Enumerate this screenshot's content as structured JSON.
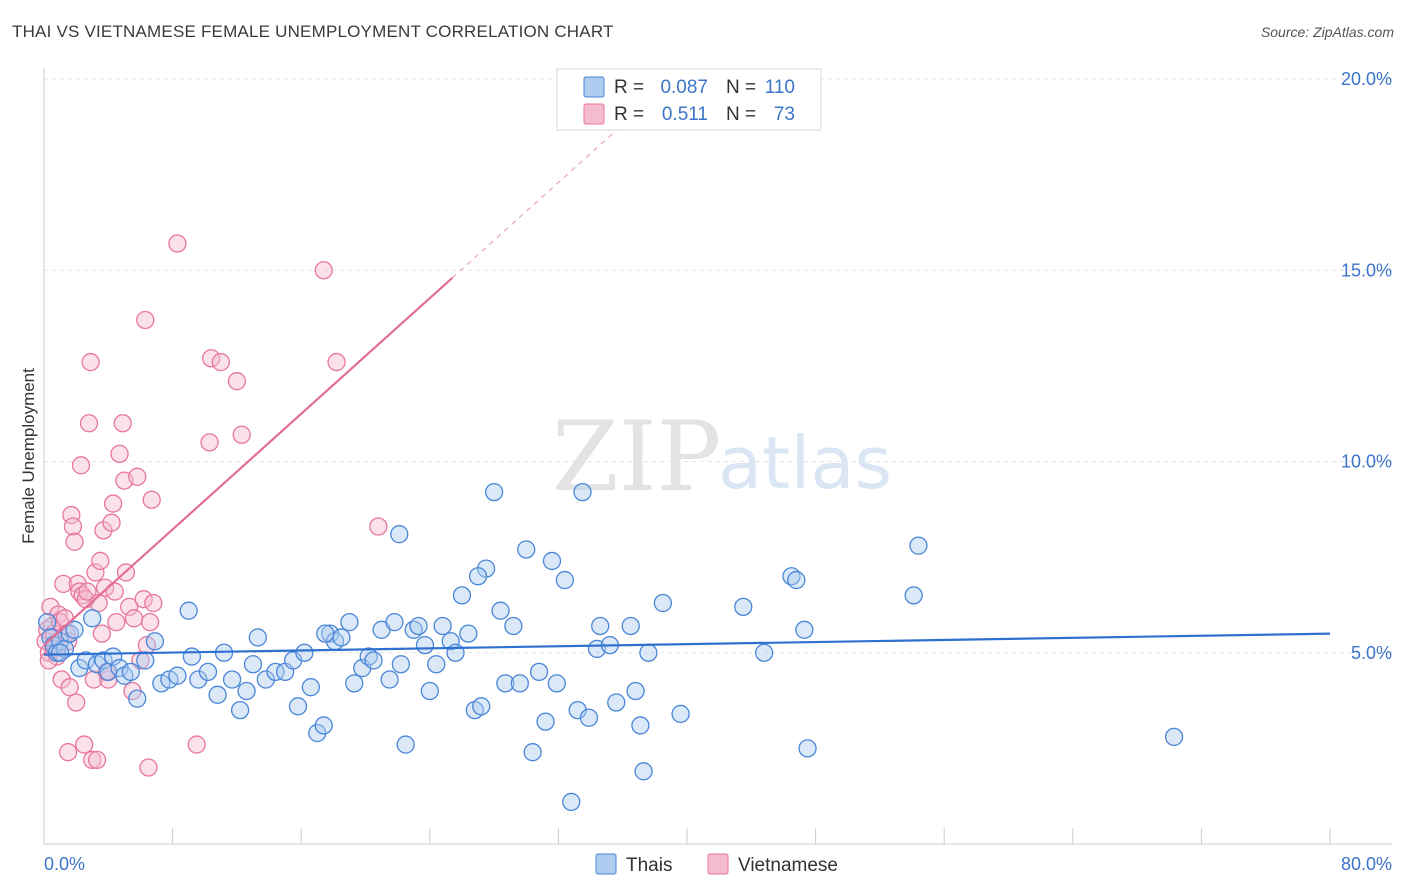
{
  "title": "THAI VS VIETNAMESE FEMALE UNEMPLOYMENT CORRELATION CHART",
  "source": "Source: ZipAtlas.com",
  "watermark": {
    "part1": "ZIP",
    "part2": "atlas"
  },
  "colors": {
    "thais": "#4a86d8",
    "vietnamese": "#e8769c",
    "thais_fill": "#aecbf0",
    "vietnamese_fill": "#f5bcd0",
    "axis_text": "#3c74c9"
  },
  "legend": {
    "r_label": "R =",
    "n_label": "N =",
    "thais": {
      "r": "0.087",
      "n": "110"
    },
    "vietnamese": {
      "r": "0.511",
      "n": "73"
    }
  },
  "chart_data": {
    "type": "scatter",
    "title": "THAI VS VIETNAMESE FEMALE UNEMPLOYMENT CORRELATION CHART",
    "xlabel": "",
    "ylabel": "Female Unemployment",
    "xlim": [
      0,
      80
    ],
    "ylim": [
      0,
      20
    ],
    "x_tick_labels": [
      "0.0%",
      "80.0%"
    ],
    "y_ticks": [
      5,
      10,
      15,
      20
    ],
    "y_tick_labels": [
      "5.0%",
      "10.0%",
      "15.0%",
      "20.0%"
    ],
    "grid": true,
    "legend_position": "top-center",
    "series": [
      {
        "name": "Thais",
        "trend": {
          "x": [
            0,
            80
          ],
          "y": [
            4.95,
            5.5
          ]
        },
        "points": [
          [
            0.2,
            5.8
          ],
          [
            0.4,
            5.4
          ],
          [
            0.6,
            5.2
          ],
          [
            0.8,
            5.0
          ],
          [
            1.0,
            5.3
          ],
          [
            1.3,
            5.1
          ],
          [
            1.6,
            5.5
          ],
          [
            1.9,
            5.6
          ],
          [
            2.2,
            4.6
          ],
          [
            2.6,
            4.8
          ],
          [
            3.0,
            5.9
          ],
          [
            3.3,
            4.7
          ],
          [
            3.7,
            4.8
          ],
          [
            4.0,
            4.5
          ],
          [
            4.3,
            4.9
          ],
          [
            4.7,
            4.6
          ],
          [
            5.0,
            4.4
          ],
          [
            5.4,
            4.5
          ],
          [
            5.8,
            3.8
          ],
          [
            6.3,
            4.8
          ],
          [
            6.9,
            5.3
          ],
          [
            7.3,
            4.2
          ],
          [
            7.8,
            4.3
          ],
          [
            8.3,
            4.4
          ],
          [
            9.0,
            6.1
          ],
          [
            9.2,
            4.9
          ],
          [
            9.6,
            4.3
          ],
          [
            10.2,
            4.5
          ],
          [
            10.8,
            3.9
          ],
          [
            11.2,
            5.0
          ],
          [
            11.7,
            4.3
          ],
          [
            12.2,
            3.5
          ],
          [
            12.6,
            4.0
          ],
          [
            13.0,
            4.7
          ],
          [
            13.3,
            5.4
          ],
          [
            13.8,
            4.3
          ],
          [
            14.4,
            4.5
          ],
          [
            15.0,
            4.5
          ],
          [
            15.5,
            4.8
          ],
          [
            15.8,
            3.6
          ],
          [
            16.2,
            5.0
          ],
          [
            16.6,
            4.1
          ],
          [
            17.0,
            2.9
          ],
          [
            17.4,
            3.1
          ],
          [
            17.8,
            5.5
          ],
          [
            18.1,
            5.3
          ],
          [
            18.5,
            5.4
          ],
          [
            19.0,
            5.8
          ],
          [
            19.3,
            4.2
          ],
          [
            19.8,
            4.6
          ],
          [
            20.2,
            4.9
          ],
          [
            20.5,
            4.8
          ],
          [
            21.0,
            5.6
          ],
          [
            21.5,
            4.3
          ],
          [
            21.8,
            5.8
          ],
          [
            22.2,
            4.7
          ],
          [
            22.5,
            2.6
          ],
          [
            23.0,
            5.6
          ],
          [
            23.3,
            5.7
          ],
          [
            23.7,
            5.2
          ],
          [
            24.0,
            4.0
          ],
          [
            24.4,
            4.7
          ],
          [
            24.8,
            5.7
          ],
          [
            25.3,
            5.3
          ],
          [
            25.6,
            5.0
          ],
          [
            26.0,
            6.5
          ],
          [
            26.4,
            5.5
          ],
          [
            26.8,
            3.5
          ],
          [
            27.2,
            3.6
          ],
          [
            27.5,
            7.2
          ],
          [
            27.0,
            7.0
          ],
          [
            28.0,
            9.2
          ],
          [
            28.4,
            6.1
          ],
          [
            28.7,
            4.2
          ],
          [
            29.2,
            5.7
          ],
          [
            29.6,
            4.2
          ],
          [
            30.0,
            7.7
          ],
          [
            30.4,
            2.4
          ],
          [
            30.8,
            4.5
          ],
          [
            31.2,
            3.2
          ],
          [
            31.6,
            7.4
          ],
          [
            31.9,
            4.2
          ],
          [
            32.4,
            6.9
          ],
          [
            32.8,
            1.1
          ],
          [
            33.2,
            3.5
          ],
          [
            33.5,
            9.2
          ],
          [
            33.9,
            3.3
          ],
          [
            34.4,
            5.1
          ],
          [
            34.6,
            5.7
          ],
          [
            35.2,
            5.2
          ],
          [
            35.6,
            3.7
          ],
          [
            36.5,
            5.7
          ],
          [
            36.8,
            4.0
          ],
          [
            37.1,
            3.1
          ],
          [
            37.3,
            1.9
          ],
          [
            37.6,
            5.0
          ],
          [
            38.5,
            6.3
          ],
          [
            39.6,
            3.4
          ],
          [
            43.5,
            6.2
          ],
          [
            44.8,
            5.0
          ],
          [
            46.5,
            7.0
          ],
          [
            46.8,
            6.9
          ],
          [
            47.3,
            5.6
          ],
          [
            47.5,
            2.5
          ],
          [
            54.1,
            6.5
          ],
          [
            54.4,
            7.8
          ],
          [
            70.3,
            2.8
          ],
          [
            22.1,
            8.1
          ],
          [
            17.5,
            5.5
          ],
          [
            1.0,
            5.0
          ]
        ]
      },
      {
        "name": "Vietnamese",
        "trend": {
          "x": [
            0,
            25.4
          ],
          "y": [
            5.2,
            14.8
          ]
        },
        "trend_dashed": {
          "x": [
            25.4,
            36.5
          ],
          "y": [
            14.8,
            19.0
          ]
        },
        "points": [
          [
            0.1,
            5.3
          ],
          [
            0.2,
            5.6
          ],
          [
            0.3,
            5.0
          ],
          [
            0.4,
            6.2
          ],
          [
            0.5,
            5.7
          ],
          [
            0.6,
            5.5
          ],
          [
            0.7,
            5.2
          ],
          [
            0.8,
            4.9
          ],
          [
            0.9,
            6.0
          ],
          [
            1.0,
            5.8
          ],
          [
            1.1,
            4.3
          ],
          [
            1.2,
            6.8
          ],
          [
            1.3,
            5.9
          ],
          [
            1.4,
            5.5
          ],
          [
            1.5,
            2.4
          ],
          [
            1.6,
            4.1
          ],
          [
            1.7,
            8.6
          ],
          [
            1.8,
            8.3
          ],
          [
            1.9,
            7.9
          ],
          [
            2.0,
            3.7
          ],
          [
            2.1,
            6.8
          ],
          [
            2.2,
            6.6
          ],
          [
            2.3,
            9.9
          ],
          [
            2.4,
            6.5
          ],
          [
            2.5,
            2.6
          ],
          [
            2.6,
            6.4
          ],
          [
            2.7,
            6.6
          ],
          [
            2.8,
            11.0
          ],
          [
            2.9,
            12.6
          ],
          [
            3.0,
            2.2
          ],
          [
            3.1,
            4.3
          ],
          [
            3.2,
            7.1
          ],
          [
            3.3,
            2.2
          ],
          [
            3.4,
            6.3
          ],
          [
            3.5,
            7.4
          ],
          [
            3.6,
            5.5
          ],
          [
            3.7,
            8.2
          ],
          [
            3.8,
            6.7
          ],
          [
            4.0,
            4.3
          ],
          [
            4.2,
            8.4
          ],
          [
            4.3,
            8.9
          ],
          [
            4.4,
            6.6
          ],
          [
            4.5,
            5.8
          ],
          [
            4.7,
            10.2
          ],
          [
            4.9,
            11.0
          ],
          [
            5.0,
            9.5
          ],
          [
            5.1,
            7.1
          ],
          [
            5.3,
            6.2
          ],
          [
            5.5,
            4.0
          ],
          [
            5.6,
            5.9
          ],
          [
            5.8,
            9.6
          ],
          [
            6.0,
            4.8
          ],
          [
            6.2,
            6.4
          ],
          [
            6.3,
            13.7
          ],
          [
            6.4,
            5.2
          ],
          [
            6.5,
            2.0
          ],
          [
            6.6,
            5.8
          ],
          [
            6.7,
            9.0
          ],
          [
            6.8,
            6.3
          ],
          [
            8.3,
            15.7
          ],
          [
            9.5,
            2.6
          ],
          [
            10.3,
            10.5
          ],
          [
            10.4,
            12.7
          ],
          [
            11.0,
            12.6
          ],
          [
            12.0,
            12.1
          ],
          [
            12.3,
            10.7
          ],
          [
            17.4,
            15.0
          ],
          [
            18.2,
            12.6
          ],
          [
            20.8,
            8.3
          ],
          [
            0.3,
            4.8
          ],
          [
            1.5,
            5.3
          ],
          [
            3.9,
            4.5
          ],
          [
            0.6,
            5.1
          ]
        ]
      }
    ]
  },
  "bottom_legend": {
    "thais": "Thais",
    "vietnamese": "Vietnamese"
  }
}
